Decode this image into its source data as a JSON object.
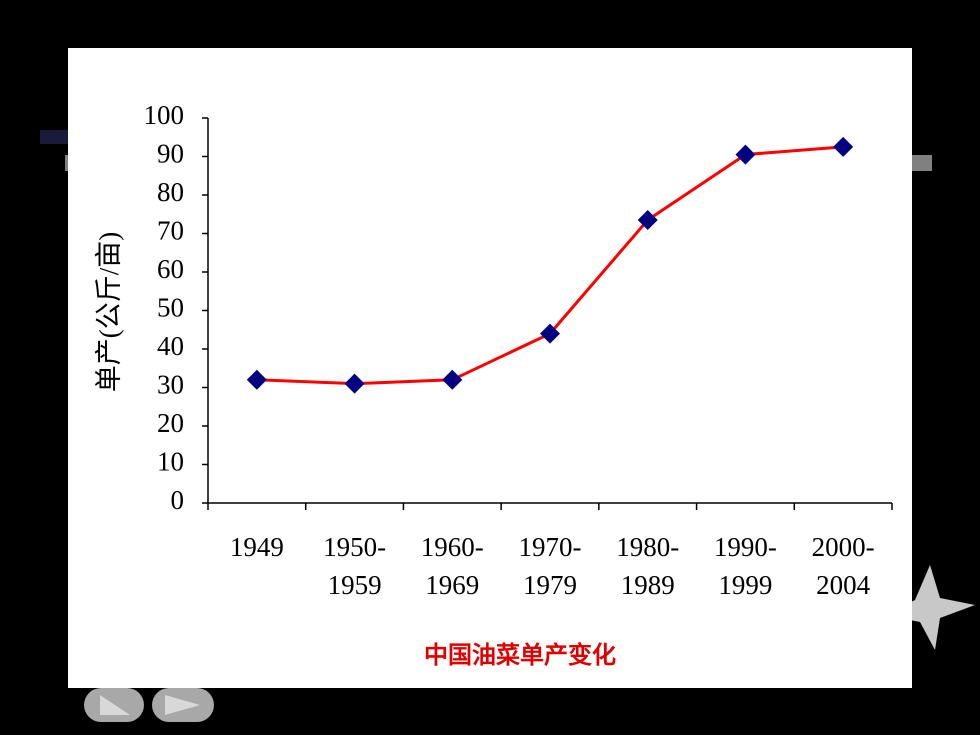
{
  "chart_data": {
    "type": "line",
    "title": "中国油菜单产变化",
    "y_label": "单产(公斤/亩)",
    "categories": [
      [
        "1949"
      ],
      [
        "1950-",
        "1959"
      ],
      [
        "1960-",
        "1969"
      ],
      [
        "1970-",
        "1979"
      ],
      [
        "1980-",
        "1989"
      ],
      [
        "1990-",
        "1999"
      ],
      [
        "2000-",
        "2004"
      ]
    ],
    "series": [
      {
        "name": "单产",
        "color": "#ff0000",
        "marker_color": "#000080",
        "values": [
          32,
          31,
          32,
          44,
          73.5,
          90.5,
          92.5
        ]
      }
    ],
    "ylim": [
      0,
      100
    ],
    "yticks": [
      0,
      10,
      20,
      30,
      40,
      50,
      60,
      70,
      80,
      90,
      100
    ]
  }
}
